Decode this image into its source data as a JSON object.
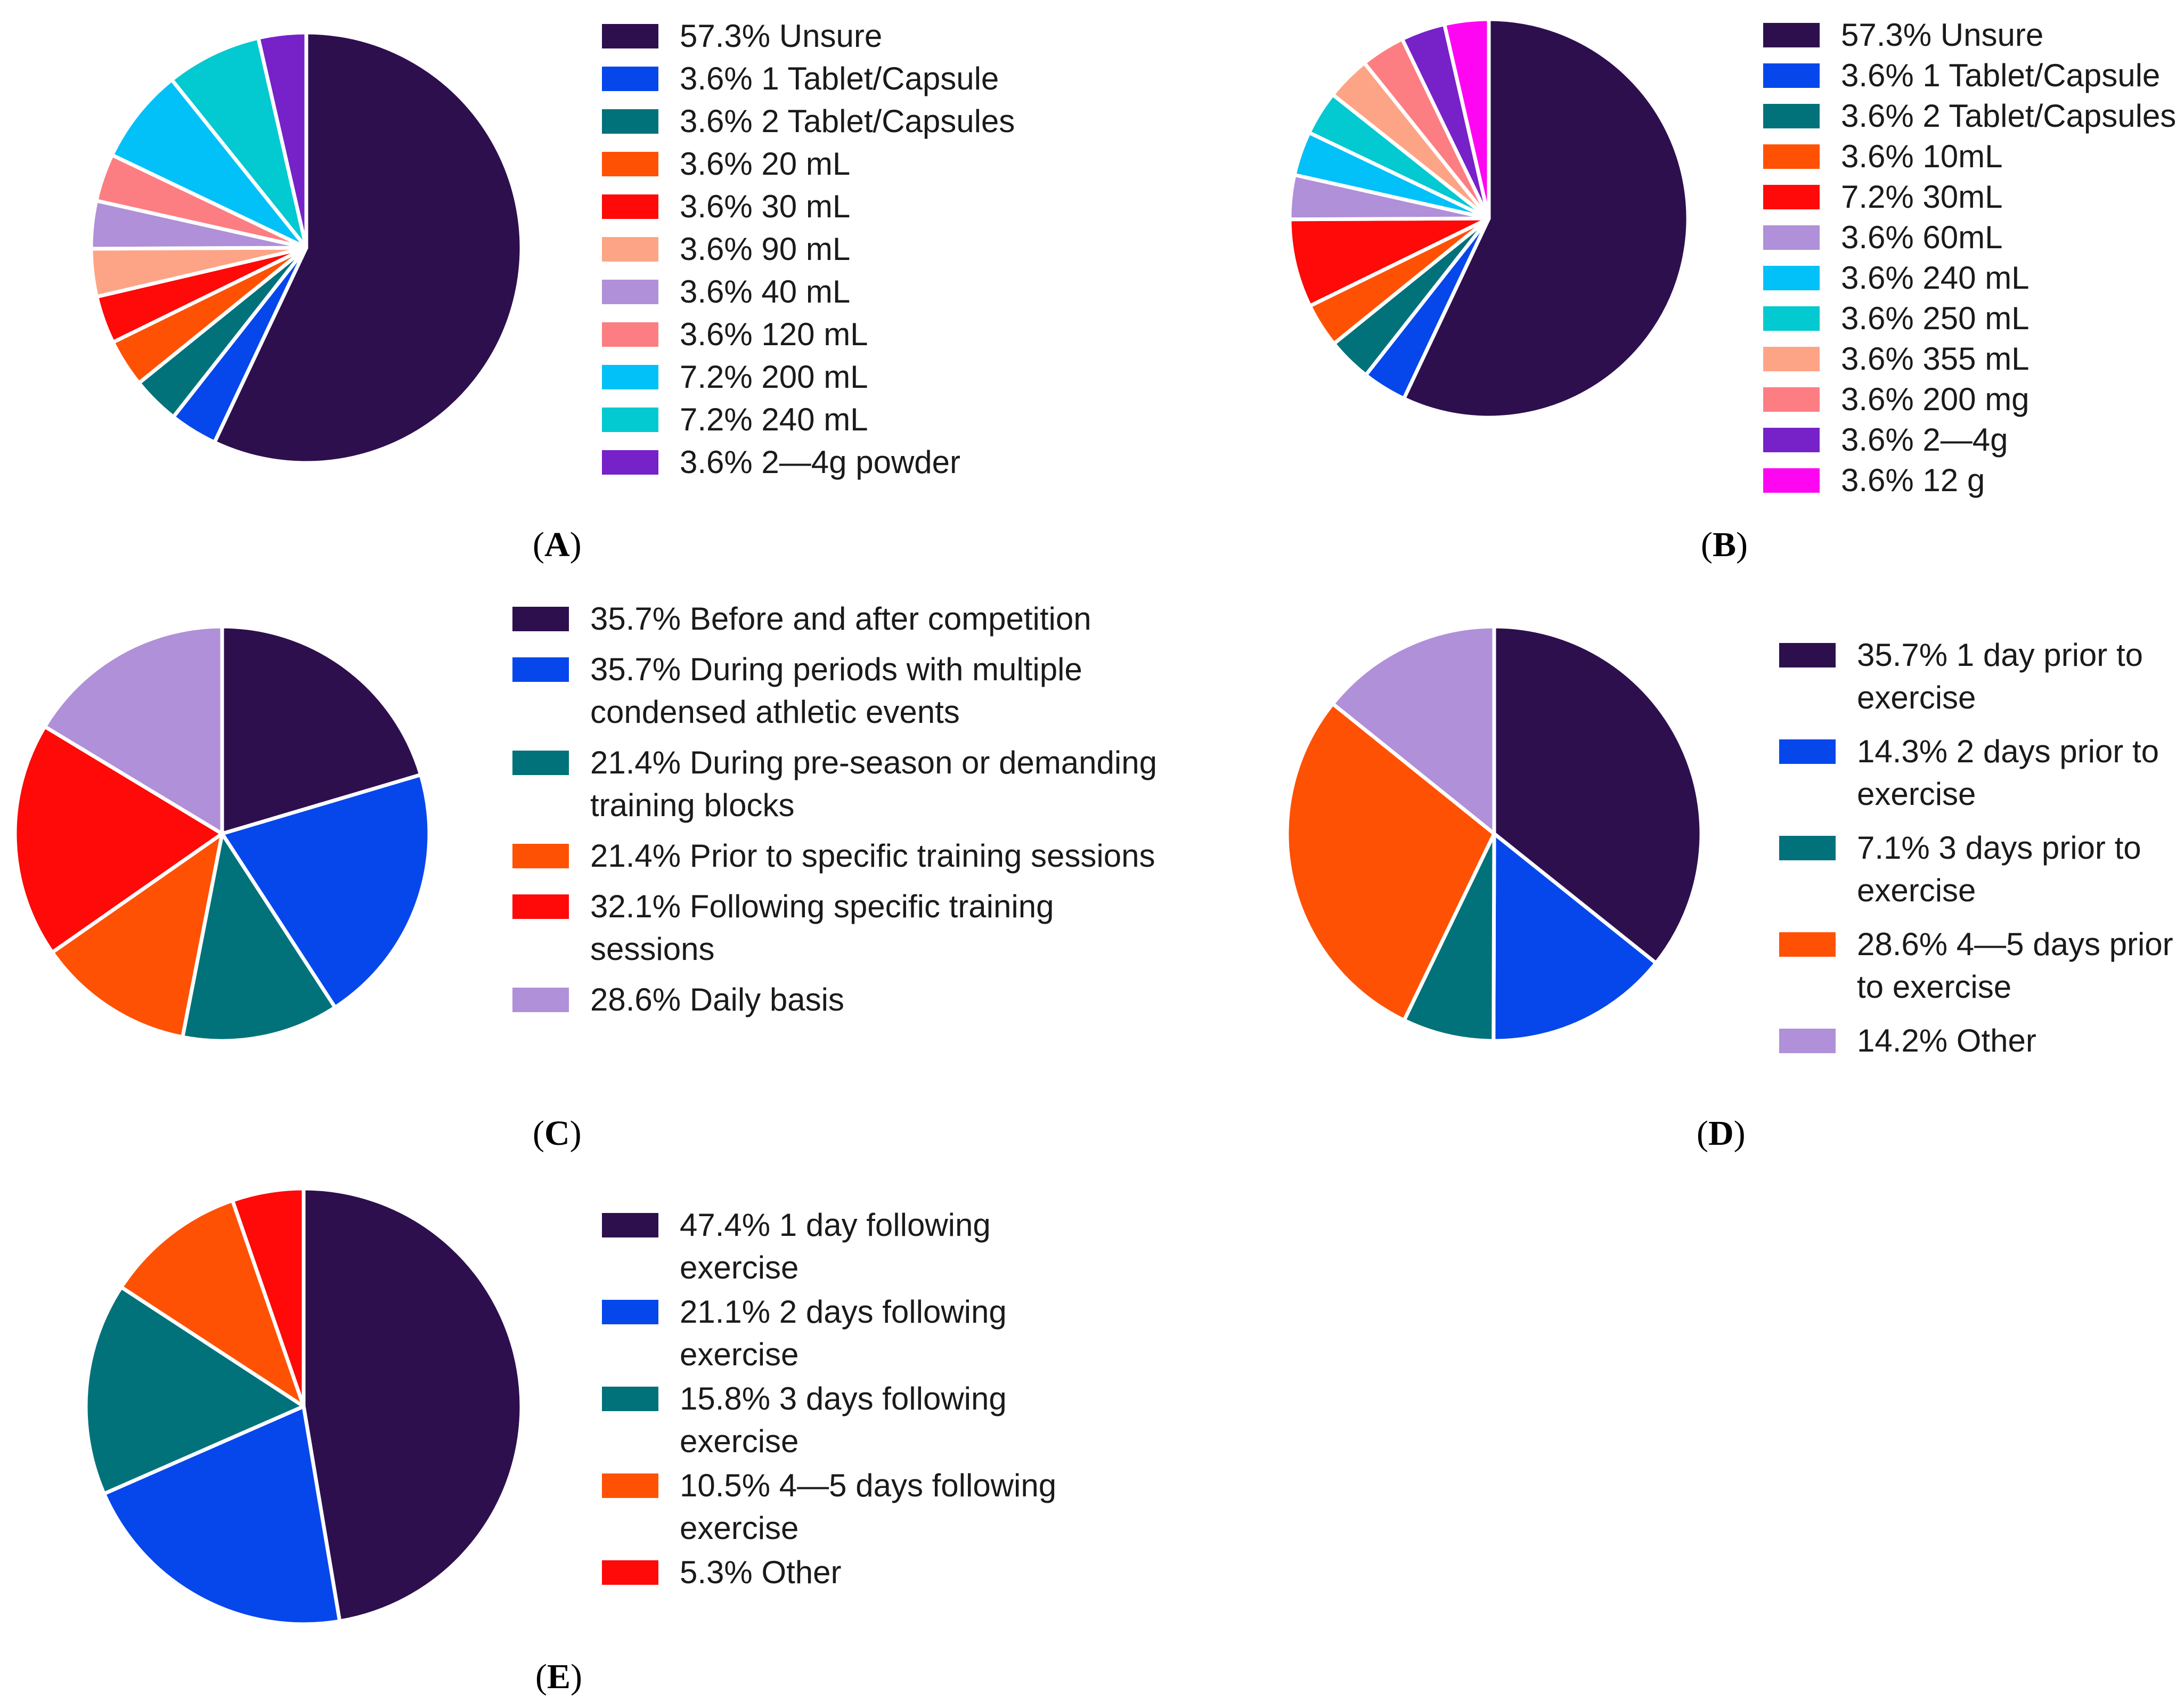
{
  "chart_data": [
    {
      "type": "pie",
      "panel": "A",
      "series": [
        {
          "label": "57.3% Unsure",
          "value": 57.3,
          "color": "#2d0f4e"
        },
        {
          "label": "3.6% 1 Tablet/Capsule",
          "value": 3.6,
          "color": "#0647ec"
        },
        {
          "label": "3.6% 2 Tablet/Capsules",
          "value": 3.6,
          "color": "#02727a"
        },
        {
          "label": "3.6% 20 mL",
          "value": 3.6,
          "color": "#ff5104"
        },
        {
          "label": "3.6% 30 mL",
          "value": 3.6,
          "color": "#ff0909"
        },
        {
          "label": "3.6% 90 mL",
          "value": 3.6,
          "color": "#fda486"
        },
        {
          "label": "3.6% 40 mL",
          "value": 3.6,
          "color": "#b090d8"
        },
        {
          "label": "3.6% 120 mL",
          "value": 3.6,
          "color": "#fc7e82"
        },
        {
          "label": "7.2% 200 mL",
          "value": 7.2,
          "color": "#02c1f8"
        },
        {
          "label": "7.2% 240 mL",
          "value": 7.2,
          "color": "#03c9d0"
        },
        {
          "label": "3.6% 2—4g powder",
          "value": 3.6,
          "color": "#7721c9"
        }
      ]
    },
    {
      "type": "pie",
      "panel": "B",
      "series": [
        {
          "label": "57.3% Unsure",
          "value": 57.3,
          "color": "#2d0f4e"
        },
        {
          "label": "3.6% 1 Tablet/Capsule",
          "value": 3.6,
          "color": "#0647ec"
        },
        {
          "label": "3.6% 2 Tablet/Capsules",
          "value": 3.6,
          "color": "#02727a"
        },
        {
          "label": "3.6% 10mL",
          "value": 3.6,
          "color": "#ff5104"
        },
        {
          "label": "7.2% 30mL",
          "value": 7.2,
          "color": "#ff0909"
        },
        {
          "label": "3.6% 60mL",
          "value": 3.6,
          "color": "#b090d8"
        },
        {
          "label": "3.6% 240 mL",
          "value": 3.6,
          "color": "#02c1f8"
        },
        {
          "label": "3.6% 250 mL",
          "value": 3.6,
          "color": "#03c9d0"
        },
        {
          "label": "3.6% 355 mL",
          "value": 3.6,
          "color": "#fda486"
        },
        {
          "label": "3.6% 200 mg",
          "value": 3.6,
          "color": "#fc7e82"
        },
        {
          "label": "3.6% 2—4g",
          "value": 3.6,
          "color": "#7721c9"
        },
        {
          "label": "3.6% 12 g",
          "value": 3.6,
          "color": "#ff06f2"
        }
      ]
    },
    {
      "type": "pie",
      "panel": "C",
      "series": [
        {
          "label": "35.7% Before and after competition",
          "value": 35.7,
          "color": "#2d0f4e"
        },
        {
          "label": "35.7% During periods with multiple condensed athletic events",
          "value": 35.7,
          "color": "#0647ec"
        },
        {
          "label": "21.4% During pre-season or demanding training blocks",
          "value": 21.4,
          "color": "#02727a"
        },
        {
          "label": "21.4% Prior to specific training sessions",
          "value": 21.4,
          "color": "#ff5104"
        },
        {
          "label": "32.1% Following specific training sessions",
          "value": 32.1,
          "color": "#ff0909"
        },
        {
          "label": "28.6% Daily basis",
          "value": 28.6,
          "color": "#b090d8"
        }
      ]
    },
    {
      "type": "pie",
      "panel": "D",
      "series": [
        {
          "label": "35.7% 1 day prior to exercise",
          "value": 35.7,
          "color": "#2d0f4e"
        },
        {
          "label": "14.3% 2 days prior to exercise",
          "value": 14.3,
          "color": "#0647ec"
        },
        {
          "label": "7.1% 3 days prior to exercise",
          "value": 7.1,
          "color": "#02727a"
        },
        {
          "label": "28.6% 4—5 days prior to exercise",
          "value": 28.6,
          "color": "#ff5104"
        },
        {
          "label": "14.2% Other",
          "value": 14.2,
          "color": "#b090d8"
        }
      ]
    },
    {
      "type": "pie",
      "panel": "E",
      "series": [
        {
          "label": "47.4% 1 day following exercise",
          "value": 47.4,
          "color": "#2d0f4e"
        },
        {
          "label": "21.1% 2 days following exercise",
          "value": 21.1,
          "color": "#0647ec"
        },
        {
          "label": "15.8% 3 days following exercise",
          "value": 15.8,
          "color": "#02727a"
        },
        {
          "label": "10.5% 4—5 days following exercise",
          "value": 10.5,
          "color": "#ff5104"
        },
        {
          "label": "5.3% Other",
          "value": 5.3,
          "color": "#ff0909"
        }
      ]
    }
  ],
  "panel_labels": {
    "A": {
      "open": "(",
      "letter": "A",
      "close": ")"
    },
    "B": {
      "open": "(",
      "letter": "B",
      "close": ")"
    },
    "C": {
      "open": "(",
      "letter": "C",
      "close": ")"
    },
    "D": {
      "open": "(",
      "letter": "D",
      "close": ")"
    },
    "E": {
      "open": "(",
      "letter": "E",
      "close": ")"
    }
  }
}
